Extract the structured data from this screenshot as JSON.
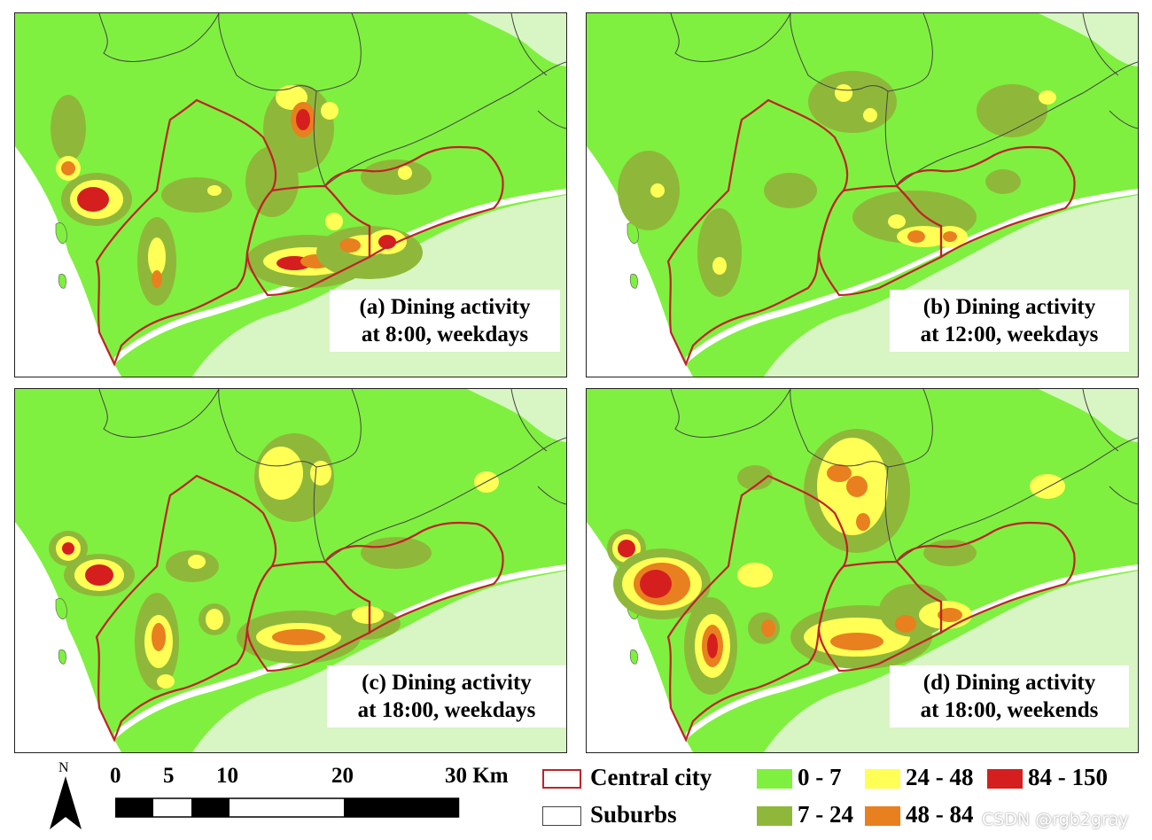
{
  "panels": [
    {
      "id": "a",
      "caption_line1": "(a) Dining activity",
      "caption_line2": "at 8:00, weekdays"
    },
    {
      "id": "b",
      "caption_line1": "(b) Dining activity",
      "caption_line2": "at 12:00, weekdays"
    },
    {
      "id": "c",
      "caption_line1": "(c) Dining activity",
      "caption_line2": "at 18:00, weekdays"
    },
    {
      "id": "d",
      "caption_line1": "(d) Dining activity",
      "caption_line2": "at 18:00, weekends"
    }
  ],
  "north_arrow": {
    "label": "N"
  },
  "scale_bar": {
    "labels": [
      "0",
      "5",
      "10",
      "20",
      "30 Km"
    ]
  },
  "boundary_legend": [
    {
      "label": "Central city",
      "color": "#c0222a"
    },
    {
      "label": "Suburbs",
      "color": "#444444"
    }
  ],
  "density_legend": [
    {
      "label": "0 - 7",
      "color": "#7ff03f"
    },
    {
      "label": "7 - 24",
      "color": "#8fb83a"
    },
    {
      "label": "24 - 48",
      "color": "#ffff55"
    },
    {
      "label": "48 - 84",
      "color": "#e8801f"
    },
    {
      "label": "84 - 150",
      "color": "#d51f1f"
    }
  ],
  "watermark": "CSDN @rgb2gray"
}
